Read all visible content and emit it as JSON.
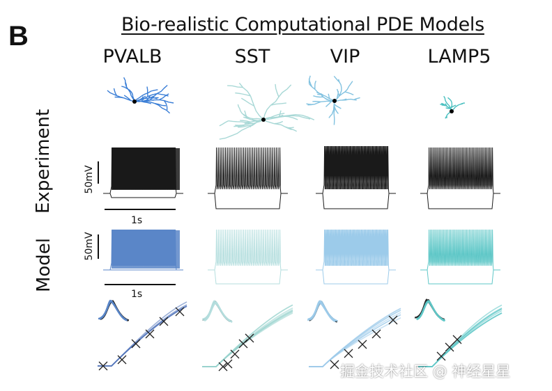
{
  "panel_letter": "B",
  "title": "Bio-realistic Computational PDE Models",
  "columns": [
    {
      "label": "PVALB",
      "color": "#3a7ed6",
      "model_color": "#5a86c8",
      "fi_color": "#4a6fb8"
    },
    {
      "label": "SST",
      "color": "#a8d8d6",
      "model_color": "#b4dede",
      "fi_color": "#96d2cc"
    },
    {
      "label": "VIP",
      "color": "#82c2e0",
      "model_color": "#9ccbea",
      "fi_color": "#9ccbea"
    },
    {
      "label": "LAMP5",
      "color": "#4bc0c0",
      "model_color": "#5ec7c7",
      "fi_color": "#5ec7c7"
    }
  ],
  "rows": {
    "experiment": "Experiment",
    "model": "Model"
  },
  "scalebars": {
    "voltage": "50mV",
    "time": "1s"
  },
  "watermark": "掘金技术社区 @ 神经星星",
  "colors": {
    "experiment_trace": "#1a1a1a",
    "soma": "#000000"
  }
}
